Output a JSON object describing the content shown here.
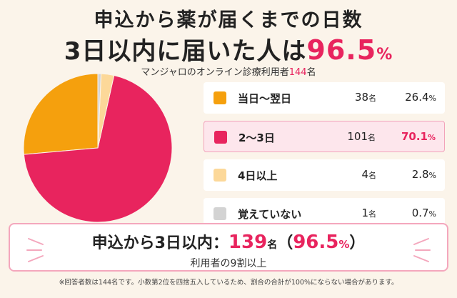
{
  "title": {
    "line1": "申込から薬が届くまでの日数",
    "line2_prefix": "3日以内に届いた人は",
    "line2_value": "96.5",
    "line2_unit": "%"
  },
  "subtitle": {
    "text": "マンジャロのオンライン診療利用者",
    "count": "144",
    "unit": "名"
  },
  "legend": [
    {
      "label": "当日〜翌日",
      "count": "38",
      "count_unit": "名",
      "pct": "26.4",
      "pct_unit": "%"
    },
    {
      "label": "2〜3日",
      "count": "101",
      "count_unit": "名",
      "pct": "70.1",
      "pct_unit": "%"
    },
    {
      "label": "4日以上",
      "count": "4",
      "count_unit": "名",
      "pct": "2.8",
      "pct_unit": "%"
    },
    {
      "label": "覚えていない",
      "count": "1",
      "count_unit": "名",
      "pct": "0.7",
      "pct_unit": "%"
    }
  ],
  "summary": {
    "prefix": "申込から",
    "days": "3日以内",
    "colon": "：",
    "count": "139",
    "count_unit": "名",
    "paren_open": "（",
    "pct": "96.5",
    "pct_unit": "%",
    "paren_close": "）",
    "sub": "利用者の9割以上"
  },
  "footnote": "※回答者数は144名です。小数第2位を四捨五入しているため、割合の合計が100%にならない場合があります。",
  "colors": {
    "same_next_day": "#f5a00d",
    "two_three_days": "#e8245e",
    "four_plus": "#fcd899",
    "dont_remember": "#d3d3d3",
    "accent": "#e8245e"
  },
  "chart_data": {
    "type": "pie",
    "categories": [
      "当日〜翌日",
      "2〜3日",
      "4日以上",
      "覚えていない"
    ],
    "values": [
      26.4,
      70.1,
      2.8,
      0.7
    ],
    "counts": [
      38,
      101,
      4,
      1
    ],
    "colors": [
      "#f5a00d",
      "#e8245e",
      "#fcd899",
      "#d3d3d3"
    ],
    "start": "top-center",
    "direction": "counterclockwise"
  }
}
